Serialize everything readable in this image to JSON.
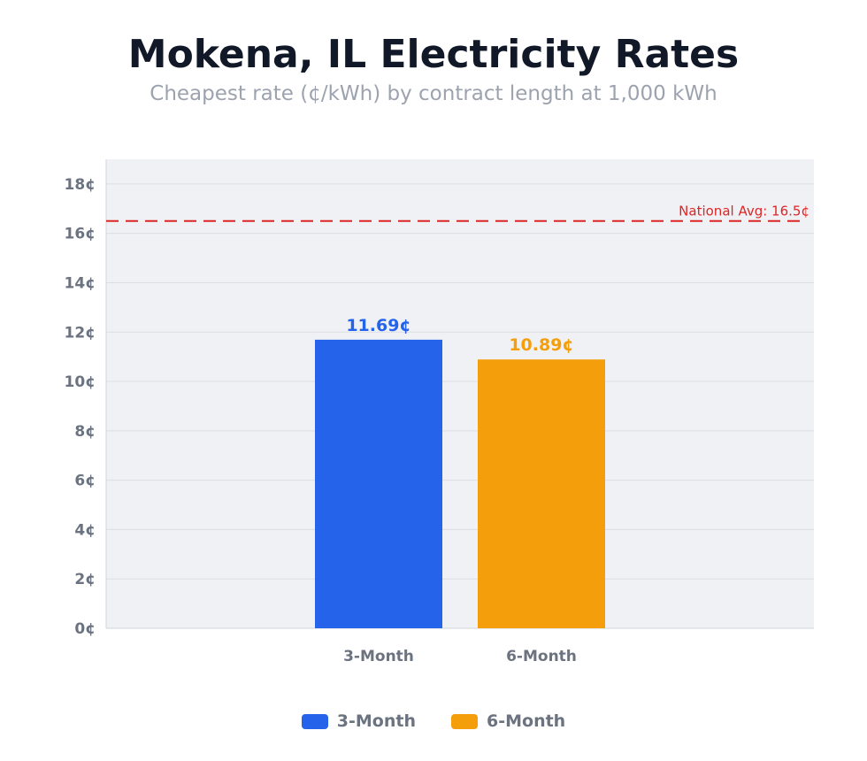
{
  "chart_data": {
    "type": "bar",
    "title": "Mokena, IL Electricity Rates",
    "subtitle": "Cheapest rate (¢/kWh) by contract length at 1,000 kWh",
    "xlabel": "",
    "ylabel": "",
    "categories": [
      "3-Month",
      "6-Month"
    ],
    "values": [
      11.69,
      10.89
    ],
    "data_labels": [
      "11.69¢",
      "10.89¢"
    ],
    "colors": [
      "#2563eb",
      "#f59e0b"
    ],
    "ylim": [
      0,
      19
    ],
    "yticks": [
      0,
      2,
      4,
      6,
      8,
      10,
      12,
      14,
      16,
      18
    ],
    "ytick_labels": [
      "0¢",
      "2¢",
      "4¢",
      "6¢",
      "8¢",
      "10¢",
      "12¢",
      "14¢",
      "16¢",
      "18¢"
    ],
    "grid": true,
    "reference_line": {
      "value": 16.5,
      "label": "National Avg: 16.5¢",
      "color": "#dc2626",
      "style": "dashed"
    },
    "legend": {
      "placement": "bottom",
      "entries": [
        "3-Month",
        "6-Month"
      ]
    }
  }
}
